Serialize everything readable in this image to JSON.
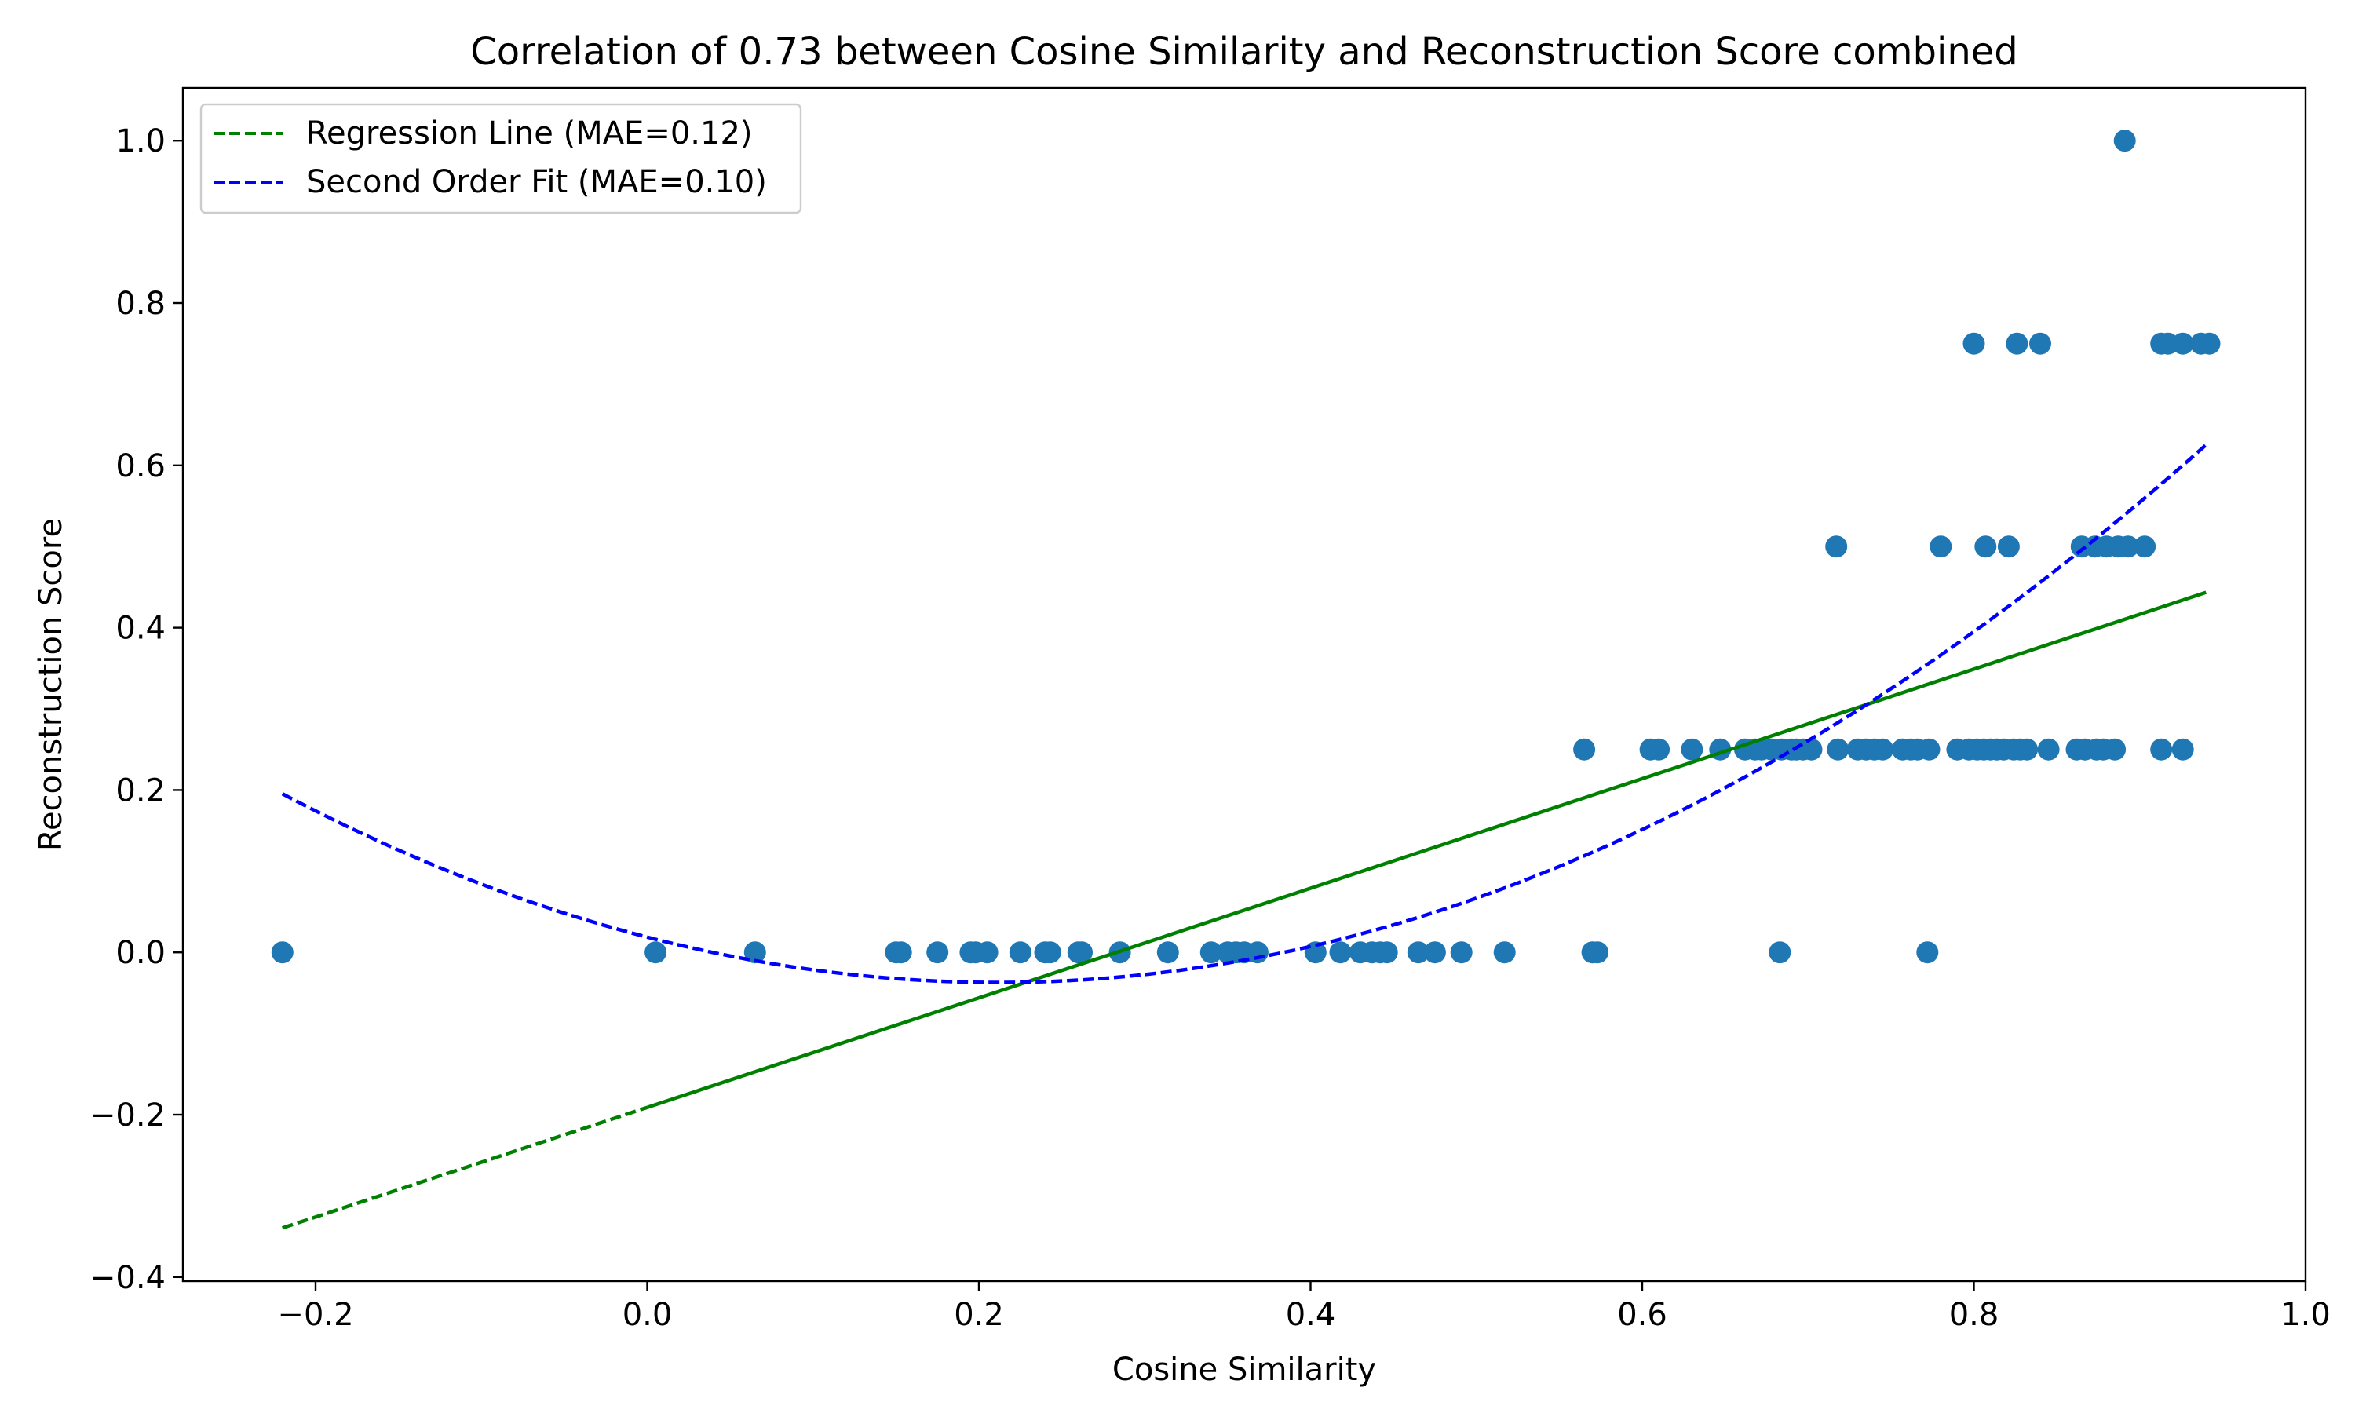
{
  "chart_data": {
    "type": "scatter",
    "title": "Correlation of 0.73 between Cosine Similarity and Reconstruction Score combined",
    "xlabel": "Cosine Similarity",
    "ylabel": "Reconstruction Score",
    "xlim": [
      -0.28,
      1.0
    ],
    "ylim": [
      -0.405,
      1.065
    ],
    "grid": false,
    "legend_position": "top-left",
    "x_ticks": [
      -0.2,
      0.0,
      0.2,
      0.4,
      0.6,
      0.8,
      1.0
    ],
    "x_tick_labels": [
      "−0.2",
      "0.0",
      "0.2",
      "0.4",
      "0.6",
      "0.8",
      "1.0"
    ],
    "y_ticks": [
      -0.4,
      -0.2,
      0.0,
      0.2,
      0.4,
      0.6,
      0.8,
      1.0
    ],
    "y_tick_labels": [
      "−0.4",
      "−0.2",
      "0.0",
      "0.2",
      "0.4",
      "0.6",
      "0.8",
      "1.0"
    ],
    "legend": [
      {
        "label": "Regression Line (MAE=0.12)",
        "color": "#008000",
        "style": "dashed"
      },
      {
        "label": "Second Order Fit (MAE=0.10)",
        "color": "#0000ff",
        "style": "dashed"
      }
    ],
    "scatter_color": "#1f77b4",
    "points": [
      [
        -0.22,
        0.0
      ],
      [
        0.005,
        0.0
      ],
      [
        0.065,
        0.0
      ],
      [
        0.15,
        0.0
      ],
      [
        0.153,
        0.0
      ],
      [
        0.175,
        0.0
      ],
      [
        0.195,
        0.0
      ],
      [
        0.198,
        0.0
      ],
      [
        0.205,
        0.0
      ],
      [
        0.225,
        0.0
      ],
      [
        0.24,
        0.0
      ],
      [
        0.243,
        0.0
      ],
      [
        0.26,
        0.0
      ],
      [
        0.262,
        0.0
      ],
      [
        0.285,
        0.0
      ],
      [
        0.314,
        0.0
      ],
      [
        0.34,
        0.0
      ],
      [
        0.35,
        0.0
      ],
      [
        0.355,
        0.0
      ],
      [
        0.36,
        0.0
      ],
      [
        0.368,
        0.0
      ],
      [
        0.403,
        0.0
      ],
      [
        0.418,
        0.0
      ],
      [
        0.43,
        0.0
      ],
      [
        0.437,
        0.0
      ],
      [
        0.442,
        0.0
      ],
      [
        0.446,
        0.0
      ],
      [
        0.465,
        0.0
      ],
      [
        0.475,
        0.0
      ],
      [
        0.491,
        0.0
      ],
      [
        0.517,
        0.0
      ],
      [
        0.57,
        0.0
      ],
      [
        0.573,
        0.0
      ],
      [
        0.683,
        0.0
      ],
      [
        0.772,
        0.0
      ],
      [
        0.565,
        0.25
      ],
      [
        0.605,
        0.25
      ],
      [
        0.61,
        0.25
      ],
      [
        0.63,
        0.25
      ],
      [
        0.647,
        0.25
      ],
      [
        0.662,
        0.25
      ],
      [
        0.668,
        0.25
      ],
      [
        0.672,
        0.25
      ],
      [
        0.678,
        0.25
      ],
      [
        0.684,
        0.25
      ],
      [
        0.69,
        0.25
      ],
      [
        0.693,
        0.25
      ],
      [
        0.697,
        0.25
      ],
      [
        0.702,
        0.25
      ],
      [
        0.718,
        0.25
      ],
      [
        0.73,
        0.25
      ],
      [
        0.735,
        0.25
      ],
      [
        0.74,
        0.25
      ],
      [
        0.745,
        0.25
      ],
      [
        0.757,
        0.25
      ],
      [
        0.762,
        0.25
      ],
      [
        0.766,
        0.25
      ],
      [
        0.773,
        0.25
      ],
      [
        0.79,
        0.25
      ],
      [
        0.797,
        0.25
      ],
      [
        0.802,
        0.25
      ],
      [
        0.806,
        0.25
      ],
      [
        0.81,
        0.25
      ],
      [
        0.814,
        0.25
      ],
      [
        0.818,
        0.25
      ],
      [
        0.824,
        0.25
      ],
      [
        0.828,
        0.25
      ],
      [
        0.832,
        0.25
      ],
      [
        0.845,
        0.25
      ],
      [
        0.862,
        0.25
      ],
      [
        0.867,
        0.25
      ],
      [
        0.874,
        0.25
      ],
      [
        0.878,
        0.25
      ],
      [
        0.885,
        0.25
      ],
      [
        0.913,
        0.25
      ],
      [
        0.926,
        0.25
      ],
      [
        0.717,
        0.5
      ],
      [
        0.78,
        0.5
      ],
      [
        0.807,
        0.5
      ],
      [
        0.821,
        0.5
      ],
      [
        0.865,
        0.5
      ],
      [
        0.873,
        0.5
      ],
      [
        0.88,
        0.5
      ],
      [
        0.887,
        0.5
      ],
      [
        0.893,
        0.5
      ],
      [
        0.903,
        0.5
      ],
      [
        0.8,
        0.75
      ],
      [
        0.826,
        0.75
      ],
      [
        0.84,
        0.75
      ],
      [
        0.913,
        0.75
      ],
      [
        0.917,
        0.75
      ],
      [
        0.926,
        0.75
      ],
      [
        0.937,
        0.75
      ],
      [
        0.942,
        0.75
      ],
      [
        0.891,
        1.0
      ]
    ],
    "regression_line": {
      "slope": 0.675,
      "intercept": -0.191,
      "x_start": -0.22,
      "x_end": 0.94,
      "solid_from_x": 0.0
    },
    "second_order_fit": {
      "a": 1.248,
      "b": -0.528,
      "c": 0.0188,
      "x_start": -0.22,
      "x_end": 0.94
    }
  }
}
